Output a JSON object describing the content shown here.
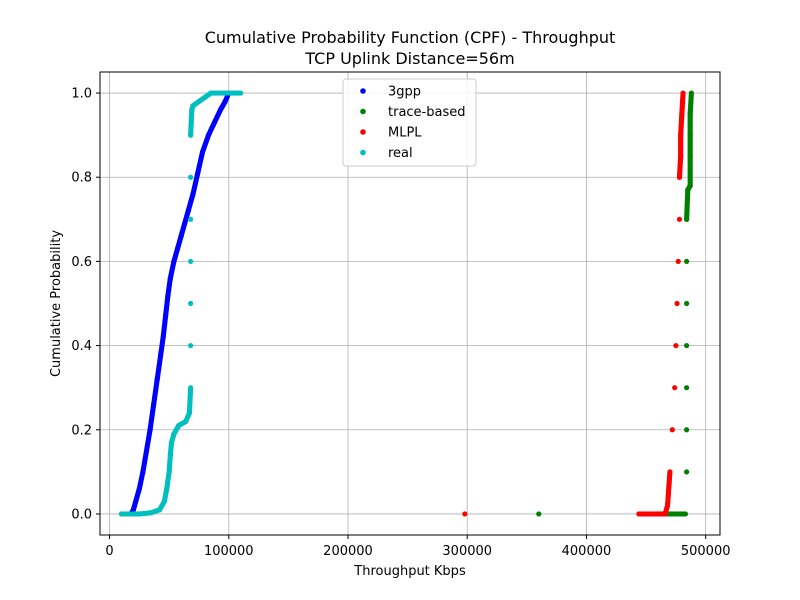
{
  "chart_data": {
    "type": "scatter",
    "title": "Cumulative Probability Function (CPF) - Throughput",
    "subtitle": "TCP Uplink Distance=56m",
    "xlabel": "Throughput Kbps",
    "ylabel": "Cumulative Probability",
    "xlim": [
      -8000,
      512000
    ],
    "ylim": [
      -0.05,
      1.05
    ],
    "xticks": [
      0,
      100000,
      200000,
      300000,
      400000,
      500000
    ],
    "xtick_labels": [
      "0",
      "100000",
      "200000",
      "300000",
      "400000",
      "500000"
    ],
    "yticks": [
      0.0,
      0.2,
      0.4,
      0.6,
      0.8,
      1.0
    ],
    "ytick_labels": [
      "0.0",
      "0.2",
      "0.4",
      "0.6",
      "0.8",
      "1.0"
    ],
    "grid": true,
    "legend_position": "top-center",
    "series": [
      {
        "name": "3gpp",
        "color": "#0000ff",
        "points": [
          [
            18000,
            0.0
          ],
          [
            20000,
            0.01
          ],
          [
            22000,
            0.03
          ],
          [
            25000,
            0.06
          ],
          [
            28000,
            0.1
          ],
          [
            31000,
            0.15
          ],
          [
            34000,
            0.2
          ],
          [
            37000,
            0.26
          ],
          [
            40000,
            0.32
          ],
          [
            43000,
            0.38
          ],
          [
            45000,
            0.42
          ],
          [
            47000,
            0.47
          ],
          [
            49000,
            0.52
          ],
          [
            51000,
            0.56
          ],
          [
            54000,
            0.6
          ],
          [
            57000,
            0.63
          ],
          [
            60000,
            0.66
          ],
          [
            63000,
            0.69
          ],
          [
            66000,
            0.72
          ],
          [
            70000,
            0.76
          ],
          [
            74000,
            0.81
          ],
          [
            78000,
            0.86
          ],
          [
            83000,
            0.9
          ],
          [
            88000,
            0.93
          ],
          [
            93000,
            0.96
          ],
          [
            97000,
            0.98
          ],
          [
            100000,
            1.0
          ]
        ]
      },
      {
        "name": "trace-based",
        "color": "#008000",
        "points": [
          [
            360000,
            0.0
          ],
          [
            462000,
            0.0
          ],
          [
            483000,
            0.0
          ],
          [
            484000,
            0.1
          ],
          [
            484000,
            0.2
          ],
          [
            484000,
            0.3
          ],
          [
            484000,
            0.4
          ],
          [
            484000,
            0.5
          ],
          [
            484000,
            0.6
          ],
          [
            484000,
            0.7
          ],
          [
            485000,
            0.77
          ],
          [
            487000,
            0.78
          ],
          [
            487000,
            0.85
          ],
          [
            487000,
            0.9
          ],
          [
            487000,
            0.95
          ],
          [
            488000,
            1.0
          ]
        ]
      },
      {
        "name": "MLPL",
        "color": "#ff0000",
        "points": [
          [
            298000,
            0.0
          ],
          [
            444000,
            0.0
          ],
          [
            466000,
            0.0
          ],
          [
            468000,
            0.02
          ],
          [
            470000,
            0.1
          ],
          [
            472000,
            0.2
          ],
          [
            474000,
            0.3
          ],
          [
            475000,
            0.4
          ],
          [
            476000,
            0.5
          ],
          [
            477000,
            0.6
          ],
          [
            478000,
            0.7
          ],
          [
            478000,
            0.8
          ],
          [
            479000,
            0.85
          ],
          [
            479000,
            0.9
          ],
          [
            480000,
            0.95
          ],
          [
            481000,
            1.0
          ]
        ]
      },
      {
        "name": "real",
        "color": "#00bfbf",
        "points": [
          [
            10000,
            0.0
          ],
          [
            25000,
            0.0
          ],
          [
            35000,
            0.003
          ],
          [
            42000,
            0.01
          ],
          [
            46000,
            0.03
          ],
          [
            48000,
            0.06
          ],
          [
            50000,
            0.1
          ],
          [
            51000,
            0.14
          ],
          [
            52000,
            0.17
          ],
          [
            54000,
            0.19
          ],
          [
            58000,
            0.21
          ],
          [
            64000,
            0.22
          ],
          [
            67000,
            0.24
          ],
          [
            68000,
            0.3
          ],
          [
            68000,
            0.4
          ],
          [
            68000,
            0.5
          ],
          [
            68000,
            0.6
          ],
          [
            68000,
            0.7
          ],
          [
            68000,
            0.8
          ],
          [
            68000,
            0.9
          ],
          [
            69000,
            0.96
          ],
          [
            70000,
            0.97
          ],
          [
            75000,
            0.98
          ],
          [
            80000,
            0.99
          ],
          [
            85000,
            1.0
          ],
          [
            95000,
            1.0
          ],
          [
            105000,
            1.0
          ],
          [
            110000,
            1.0
          ]
        ]
      }
    ]
  }
}
